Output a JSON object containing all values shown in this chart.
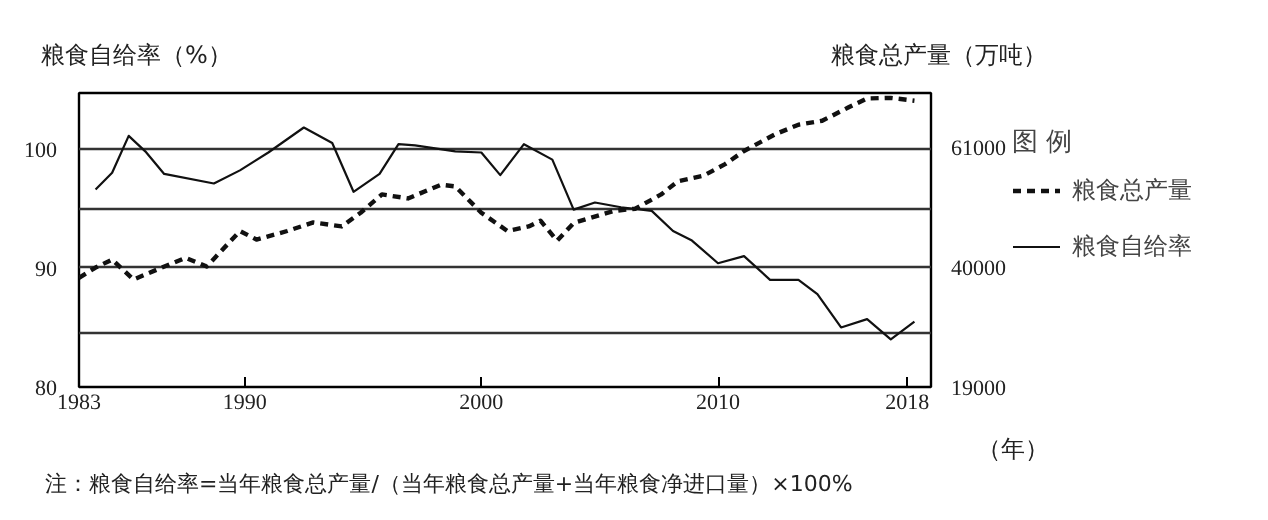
{
  "chart_data": {
    "type": "line",
    "ylabel": "粮食自给率（%）",
    "y2label": "粮食总产量（万吨）",
    "xlabel": "（年）",
    "legend_title": "图 例",
    "xlim": [
      1983,
      2019
    ],
    "xticks": [
      1983,
      1990,
      2000,
      2010,
      2018
    ],
    "ylim": [
      80,
      104.7
    ],
    "yticks": [
      80,
      {
        "value": 84.5,
        "label": null
      },
      90,
      {
        "value": 95,
        "label": null
      },
      100
    ],
    "y2lim": [
      19000,
      70450
    ],
    "y2ticks": [
      19000,
      40000,
      61000
    ],
    "grid": "y",
    "legend": "right",
    "series": [
      {
        "name": "粮食总产量",
        "color": "#111111",
        "axis": "y2",
        "line_style": "dashed",
        "x": [
          1983.0,
          1983.7,
          1984.4,
          1985.3,
          1986.5,
          1987.5,
          1988.4,
          1989.8,
          1990.5,
          1991.8,
          1992.9,
          1994.1,
          1994.9,
          1995.8,
          1996.9,
          1998.3,
          1998.9,
          2000.0,
          2001.1,
          2002.0,
          2002.5,
          2003.2,
          2003.9,
          2005.1,
          2005.6,
          2006.5,
          2007.6,
          2008.3,
          2009.4,
          2010.3,
          2011.1,
          2012.4,
          2013.4,
          2014.4,
          2015.5,
          2016.3,
          2017.3,
          2018.3
        ],
        "values": [
          38100,
          39900,
          41300,
          37800,
          39900,
          41600,
          40100,
          46300,
          44800,
          46300,
          47800,
          47100,
          49500,
          52700,
          52000,
          54400,
          54100,
          49500,
          46300,
          47100,
          48100,
          44600,
          47700,
          49200,
          49800,
          50200,
          52700,
          55000,
          56000,
          58000,
          60300,
          63200,
          64900,
          65600,
          67900,
          69500,
          69600,
          69100
        ]
      },
      {
        "name": "粮食自给率",
        "color": "#111111",
        "line_style": "solid",
        "x": [
          1983.7,
          1984.4,
          1985.1,
          1985.8,
          1986.6,
          1988.7,
          1989.8,
          1991.0,
          1992.5,
          1993.7,
          1994.6,
          1995.7,
          1996.5,
          1997.2,
          1998.9,
          2000.0,
          2000.8,
          2001.3,
          2001.8,
          2003.0,
          2003.9,
          2004.8,
          2005.9,
          2007.2,
          2008.1,
          2008.9,
          2010.0,
          2011.1,
          2012.2,
          2013.4,
          2014.2,
          2015.2,
          2016.3,
          2017.3,
          2018.3
        ],
        "values": [
          96.6,
          98.0,
          101.1,
          99.8,
          97.9,
          97.1,
          98.2,
          99.7,
          101.8,
          100.5,
          96.4,
          97.9,
          100.4,
          100.3,
          99.8,
          99.7,
          97.8,
          99.1,
          100.4,
          99.1,
          94.9,
          95.5,
          95.1,
          94.8,
          93.1,
          92.3,
          90.4,
          91.0,
          89.0,
          89.0,
          87.8,
          85.0,
          85.7,
          84.0,
          85.5
        ]
      }
    ],
    "annotations": [
      "注：粮食自给率=当年粮食总产量/（当年粮食总产量+当年粮食净进口量）×100%"
    ]
  }
}
